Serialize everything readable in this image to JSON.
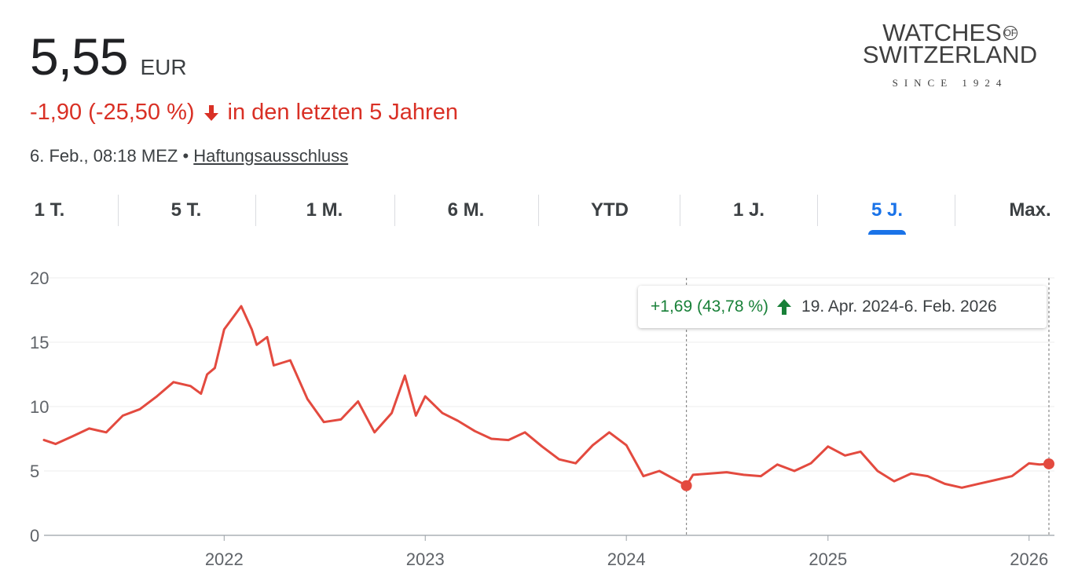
{
  "quote": {
    "price": "5,55",
    "currency": "EUR",
    "change": "-1,90 (-25,50 %)",
    "period_text": "in den letzten 5 Jahren",
    "timestamp": "6. Feb., 08:18 MEZ",
    "separator": "•",
    "disclaimer": "Haftungsausschluss",
    "down_color": "#d93025"
  },
  "logo": {
    "line1": "WATCHES",
    "of": "OF",
    "line2": "SWITZERLAND",
    "since": "SINCE 1924"
  },
  "tabs": [
    {
      "label": "1 T.",
      "active": false
    },
    {
      "label": "5 T.",
      "active": false
    },
    {
      "label": "1 M.",
      "active": false
    },
    {
      "label": "6 M.",
      "active": false
    },
    {
      "label": "YTD",
      "active": false
    },
    {
      "label": "1 J.",
      "active": false
    },
    {
      "label": "5 J.",
      "active": true
    },
    {
      "label": "Max.",
      "active": false
    }
  ],
  "tooltip": {
    "gain": "+1,69 (43,78 %)",
    "range": "19. Apr. 2024-6. Feb. 2026",
    "up_color": "#188038"
  },
  "chart_data": {
    "type": "line",
    "line_color": "#e34a3f",
    "x_ticks": [
      "2022",
      "2023",
      "2024",
      "2025",
      "2026"
    ],
    "y_ticks": [
      0,
      5,
      10,
      15,
      20
    ],
    "ylim": [
      0,
      20
    ],
    "xlim": [
      "2021-02-08",
      "2026-02-16"
    ],
    "grid": true,
    "markers": [
      {
        "date": "2024-04-19",
        "value": 3.86
      },
      {
        "date": "2026-02-06",
        "value": 5.55
      }
    ],
    "series": [
      {
        "x": [
          "2021-02-08",
          "2021-03-01",
          "2021-04-01",
          "2021-05-01",
          "2021-06-01",
          "2021-07-01",
          "2021-08-01",
          "2021-09-01",
          "2021-10-01",
          "2021-11-01",
          "2021-11-20",
          "2021-12-01",
          "2021-12-15",
          "2022-01-01",
          "2022-01-20",
          "2022-02-01",
          "2022-02-20",
          "2022-03-01",
          "2022-03-20",
          "2022-04-01",
          "2022-05-01",
          "2022-06-01",
          "2022-07-01",
          "2022-08-01",
          "2022-09-01",
          "2022-10-01",
          "2022-11-01",
          "2022-11-25",
          "2022-12-15",
          "2023-01-01",
          "2023-02-01",
          "2023-03-01",
          "2023-04-01",
          "2023-05-01",
          "2023-06-01",
          "2023-07-01",
          "2023-08-01",
          "2023-09-01",
          "2023-10-01",
          "2023-11-01",
          "2023-12-01",
          "2024-01-01",
          "2024-02-01",
          "2024-03-01",
          "2024-04-19",
          "2024-05-01",
          "2024-06-01",
          "2024-07-01",
          "2024-08-01",
          "2024-09-01",
          "2024-10-01",
          "2024-11-01",
          "2024-12-01",
          "2025-01-01",
          "2025-02-01",
          "2025-03-01",
          "2025-04-01",
          "2025-05-01",
          "2025-06-01",
          "2025-07-01",
          "2025-08-01",
          "2025-09-01",
          "2025-10-01",
          "2025-11-01",
          "2025-12-01",
          "2026-01-01",
          "2026-01-20",
          "2026-02-06"
        ],
        "values": [
          7.4,
          7.1,
          7.7,
          8.3,
          8.0,
          9.3,
          9.8,
          10.8,
          11.9,
          11.6,
          11.0,
          12.5,
          13.0,
          16.0,
          17.1,
          17.8,
          16.0,
          14.8,
          15.4,
          13.2,
          13.6,
          10.6,
          8.8,
          9.0,
          10.4,
          8.0,
          9.5,
          12.4,
          9.3,
          10.8,
          9.5,
          8.9,
          8.1,
          7.5,
          7.4,
          8.0,
          6.9,
          5.9,
          5.6,
          7.0,
          8.0,
          7.0,
          4.6,
          5.0,
          3.86,
          4.7,
          4.8,
          4.9,
          4.7,
          4.6,
          5.5,
          5.0,
          5.6,
          6.9,
          6.2,
          6.5,
          5.0,
          4.2,
          4.8,
          4.6,
          4.0,
          3.7,
          4.0,
          4.3,
          4.6,
          5.6,
          5.5,
          5.55
        ]
      }
    ]
  }
}
